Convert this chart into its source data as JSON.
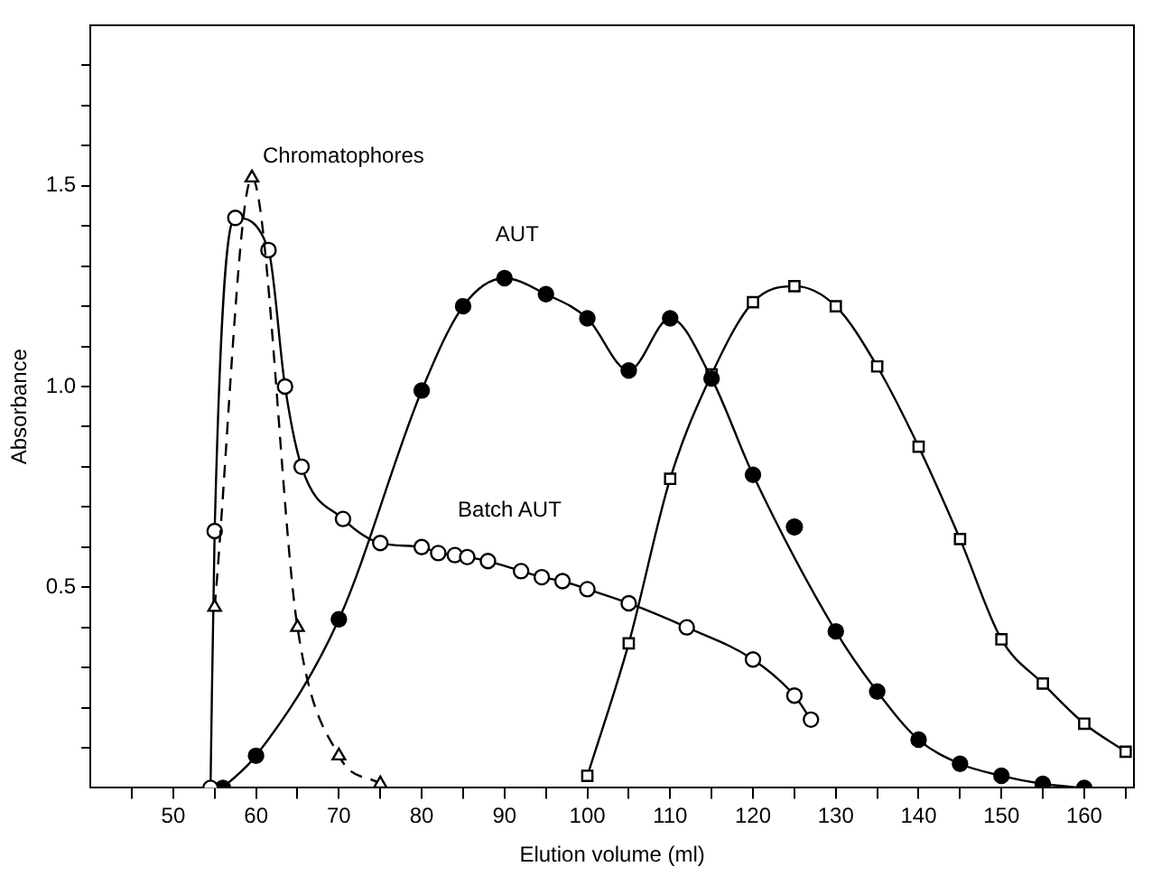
{
  "chart_data": {
    "type": "line",
    "xlabel": "Elution volume (ml)",
    "ylabel": "Absorbance",
    "xlim": [
      40,
      166
    ],
    "ylim": [
      0,
      1.9
    ],
    "xticks": [
      {
        "value": 45,
        "label": null
      },
      50,
      {
        "value": 55,
        "label": null
      },
      60,
      {
        "value": 65,
        "label": null
      },
      70,
      {
        "value": 75,
        "label": null
      },
      80,
      {
        "value": 85,
        "label": null
      },
      90,
      {
        "value": 95,
        "label": null
      },
      100,
      {
        "value": 105,
        "label": null
      },
      110,
      {
        "value": 115,
        "label": null
      },
      120,
      {
        "value": 125,
        "label": null
      },
      130,
      {
        "value": 135,
        "label": null
      },
      140,
      {
        "value": 145,
        "label": null
      },
      150,
      {
        "value": 155,
        "label": null
      },
      160,
      {
        "value": 165,
        "label": null
      }
    ],
    "yticks": [
      {
        "value": 0.1,
        "label": null
      },
      {
        "value": 0.2,
        "label": null
      },
      {
        "value": 0.3,
        "label": null
      },
      {
        "value": 0.4,
        "label": null
      },
      {
        "value": 0.5,
        "label": "0.5"
      },
      {
        "value": 0.6,
        "label": null
      },
      {
        "value": 0.7,
        "label": null
      },
      {
        "value": 0.8,
        "label": null
      },
      {
        "value": 0.9,
        "label": null
      },
      {
        "value": 1.0,
        "label": "1.0"
      },
      {
        "value": 1.1,
        "label": null
      },
      {
        "value": 1.2,
        "label": null
      },
      {
        "value": 1.3,
        "label": null
      },
      {
        "value": 1.4,
        "label": null
      },
      {
        "value": 1.5,
        "label": "1.5"
      },
      {
        "value": 1.6,
        "label": null
      },
      {
        "value": 1.7,
        "label": null
      },
      {
        "value": 1.8,
        "label": null
      }
    ],
    "grid": false,
    "legend": false,
    "series": [
      {
        "name": "Chromatophores",
        "color": "#000000",
        "marker": "triangle",
        "line_style": "dashed",
        "x": [
          55,
          59.5,
          65,
          70,
          75
        ],
        "values": [
          0.45,
          1.52,
          0.4,
          0.08,
          0.01
        ]
      },
      {
        "name": "Batch AUT",
        "color": "#000000",
        "marker": "circle",
        "line_style": "solid",
        "x": [
          54.5,
          55,
          57.5,
          61.5,
          63.5,
          65.5,
          70.5,
          75,
          80,
          82,
          84,
          85.5,
          88,
          92,
          94.5,
          97,
          100,
          105,
          112,
          120,
          125,
          127
        ],
        "values": [
          0,
          0.64,
          1.42,
          1.34,
          1.0,
          0.8,
          0.67,
          0.61,
          0.6,
          0.585,
          0.58,
          0.575,
          0.565,
          0.54,
          0.525,
          0.515,
          0.495,
          0.46,
          0.4,
          0.32,
          0.23,
          0.17
        ]
      },
      {
        "name": "AUT",
        "color": "#000000",
        "marker": "circle",
        "line_style": "solid",
        "x": [
          56,
          60,
          70,
          80,
          85,
          90,
          95,
          100,
          105,
          110,
          115,
          120,
          130,
          135,
          140,
          145,
          150,
          155,
          160
        ],
        "values": [
          0,
          0.08,
          0.42,
          0.99,
          1.2,
          1.27,
          1.23,
          1.17,
          1.04,
          1.17,
          1.02,
          0.78,
          0.39,
          0.24,
          0.12,
          0.06,
          0.03,
          0.01,
          0
        ]
      },
      {
        "type": "scatter",
        "color": "#000000",
        "marker": "circle",
        "x": [
          125
        ],
        "values": [
          0.65
        ]
      },
      {
        "color": "#000000",
        "marker": "square",
        "line_style": "solid",
        "x": [
          100,
          105,
          110,
          115,
          120,
          125,
          130,
          135,
          140,
          145,
          150,
          155,
          160,
          165
        ],
        "values": [
          0.03,
          0.36,
          0.77,
          1.03,
          1.21,
          1.25,
          1.2,
          1.05,
          0.85,
          0.62,
          0.37,
          0.26,
          0.16,
          0.09
        ]
      }
    ]
  }
}
